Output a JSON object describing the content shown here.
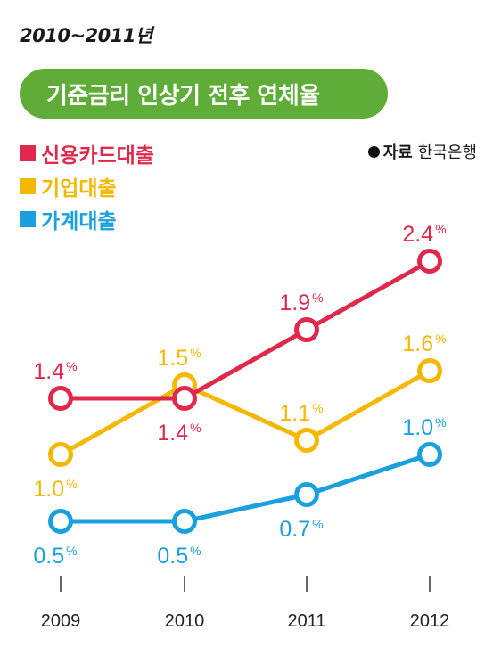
{
  "header": {
    "period": "2010~2011년",
    "title": "기준금리 인상기 전후 연체율"
  },
  "source": {
    "label": "자료",
    "name": "한국은행"
  },
  "colors": {
    "title_bg": "#5fad38",
    "credit_card": "#e0284a",
    "corporate": "#f5b800",
    "household": "#1a9fdf"
  },
  "chart_data": {
    "type": "line",
    "title": "기준금리 인상기 전후 연체율",
    "x": [
      "2009",
      "2010",
      "2011",
      "2012"
    ],
    "unit": "%",
    "grid": false,
    "legend_position": "top-left",
    "series": [
      {
        "name": "신용카드대출",
        "color": "#e0284a",
        "values": [
          1.4,
          1.4,
          1.9,
          2.4
        ],
        "labels": [
          "1.4",
          "1.4",
          "1.9",
          "2.4"
        ]
      },
      {
        "name": "기업대출",
        "color": "#f5b800",
        "values": [
          1.0,
          1.5,
          1.1,
          1.6
        ],
        "labels": [
          "1.0",
          "1.5",
          "1.1",
          "1.6"
        ]
      },
      {
        "name": "가계대출",
        "color": "#1a9fdf",
        "values": [
          0.5,
          0.5,
          0.7,
          1.0
        ],
        "labels": [
          "0.5",
          "0.5",
          "0.7",
          "1.0"
        ]
      }
    ]
  }
}
